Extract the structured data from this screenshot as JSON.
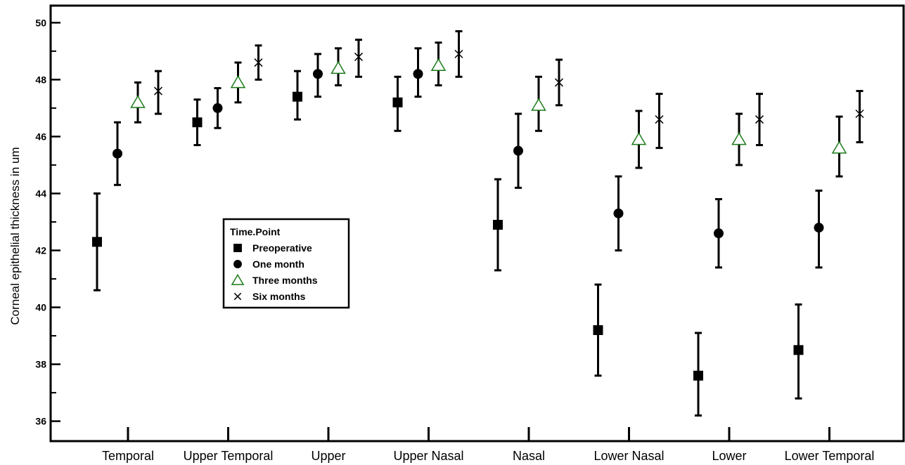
{
  "chart_data": {
    "type": "scatter",
    "ylabel": "Corneal epithelial thickness in um",
    "xlabel": "",
    "ylim": [
      35.3,
      50.6
    ],
    "yticks": [
      36,
      38,
      40,
      42,
      44,
      46,
      48,
      50
    ],
    "categories": [
      "Temporal",
      "Upper Temporal",
      "Upper",
      "Upper Nasal",
      "Nasal",
      "Lower Nasal",
      "Lower",
      "Lower Temporal"
    ],
    "legend": {
      "title": "Time.Point",
      "placement": "center-left"
    },
    "series": [
      {
        "name": "Preoperative",
        "marker": "square",
        "color": "#000000",
        "values": [
          42.3,
          46.5,
          47.4,
          47.2,
          42.9,
          39.2,
          37.6,
          38.5
        ],
        "err_low": [
          40.6,
          45.7,
          46.6,
          46.2,
          41.3,
          37.6,
          36.2,
          36.8
        ],
        "err_high": [
          44.0,
          47.3,
          48.3,
          48.1,
          44.5,
          40.8,
          39.1,
          40.1
        ]
      },
      {
        "name": "One month",
        "marker": "circle",
        "color": "#000000",
        "values": [
          45.4,
          47.0,
          48.2,
          48.2,
          45.5,
          43.3,
          42.6,
          42.8
        ],
        "err_low": [
          44.3,
          46.3,
          47.4,
          47.4,
          44.2,
          42.0,
          41.4,
          41.4
        ],
        "err_high": [
          46.5,
          47.7,
          48.9,
          49.1,
          46.8,
          44.6,
          43.8,
          44.1
        ]
      },
      {
        "name": "Three months",
        "marker": "triangle",
        "color": "#1a7a1a",
        "values": [
          47.2,
          47.9,
          48.4,
          48.5,
          47.1,
          45.9,
          45.9,
          45.6
        ],
        "err_low": [
          46.5,
          47.2,
          47.8,
          47.8,
          46.2,
          44.9,
          45.0,
          44.6
        ],
        "err_high": [
          47.9,
          48.6,
          49.1,
          49.3,
          48.1,
          46.9,
          46.8,
          46.7
        ]
      },
      {
        "name": "Six months",
        "marker": "x",
        "color": "#000000",
        "values": [
          47.6,
          48.6,
          48.8,
          48.9,
          47.9,
          46.6,
          46.6,
          46.8
        ],
        "err_low": [
          46.8,
          48.0,
          48.1,
          48.1,
          47.1,
          45.6,
          45.7,
          45.8
        ],
        "err_high": [
          48.3,
          49.2,
          49.4,
          49.7,
          48.7,
          47.5,
          47.5,
          47.6
        ]
      }
    ]
  }
}
